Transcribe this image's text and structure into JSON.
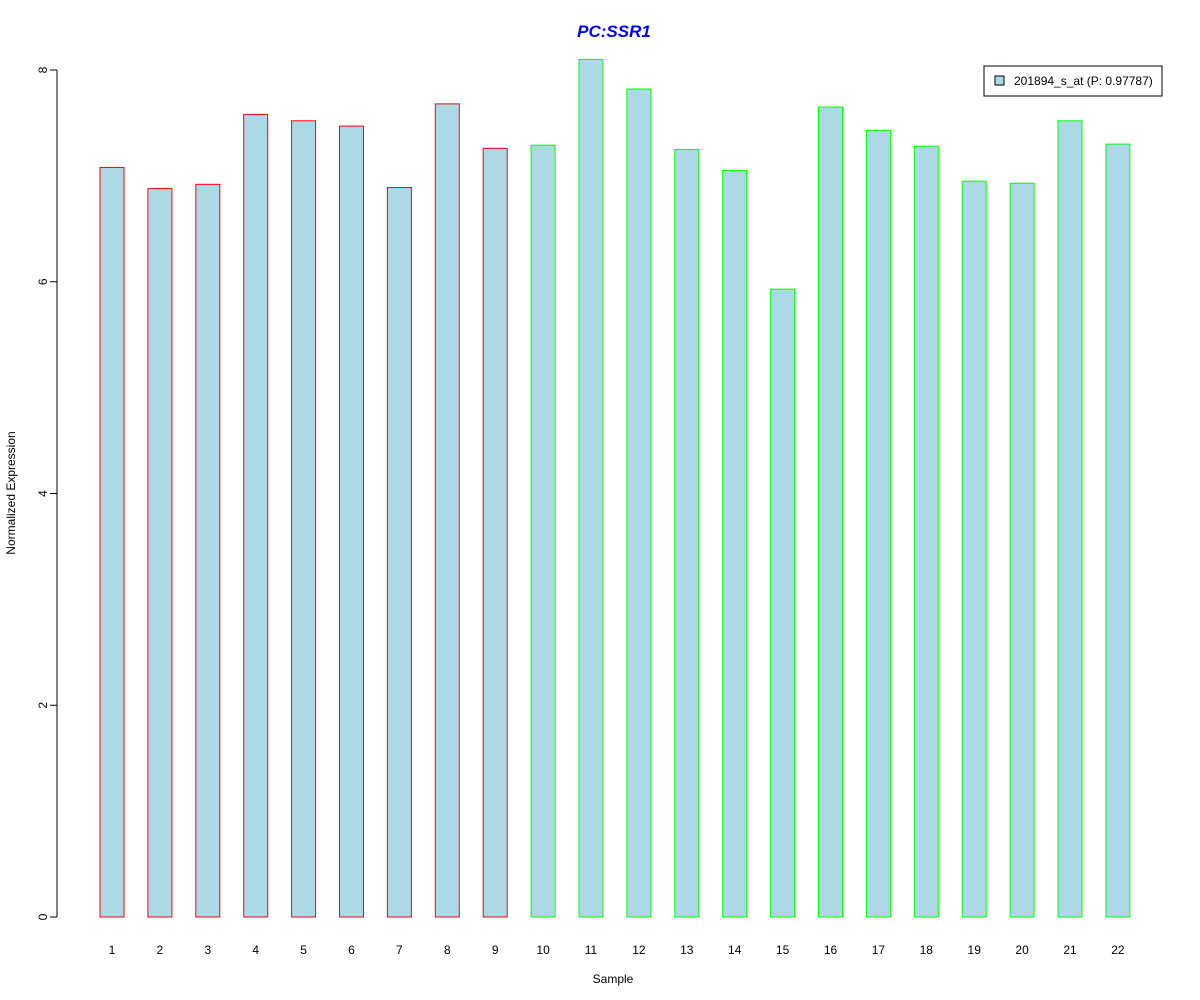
{
  "chart_data": {
    "type": "bar",
    "title": "PC:SSR1",
    "xlabel": "Sample",
    "ylabel": "Normalized Expression",
    "ylim": [
      0,
      8.1
    ],
    "yticks": [
      0,
      2,
      4,
      6,
      8
    ],
    "categories": [
      "1",
      "2",
      "3",
      "4",
      "5",
      "6",
      "7",
      "8",
      "9",
      "10",
      "11",
      "12",
      "13",
      "14",
      "15",
      "16",
      "17",
      "18",
      "19",
      "20",
      "21",
      "22"
    ],
    "series": [
      {
        "name": "201894_s_at (P: 0.97787)",
        "values": [
          7.08,
          6.88,
          6.92,
          7.58,
          7.52,
          7.47,
          6.89,
          7.68,
          7.26,
          7.29,
          8.1,
          7.82,
          7.25,
          7.05,
          5.93,
          7.65,
          7.43,
          7.28,
          6.95,
          6.93,
          7.52,
          7.3
        ]
      }
    ],
    "group_of_sample": [
      "a",
      "a",
      "a",
      "a",
      "a",
      "a",
      "a",
      "a",
      "a",
      "b",
      "b",
      "b",
      "b",
      "b",
      "b",
      "b",
      "b",
      "b",
      "b",
      "b",
      "b",
      "b"
    ],
    "legend_position": "top-right",
    "grid": false,
    "colors": {
      "bar_fill": "#add8e6",
      "group_a_border": "#ff0000",
      "group_b_border": "#00ff00",
      "title": "#0000ff",
      "axis": "#000000"
    }
  }
}
